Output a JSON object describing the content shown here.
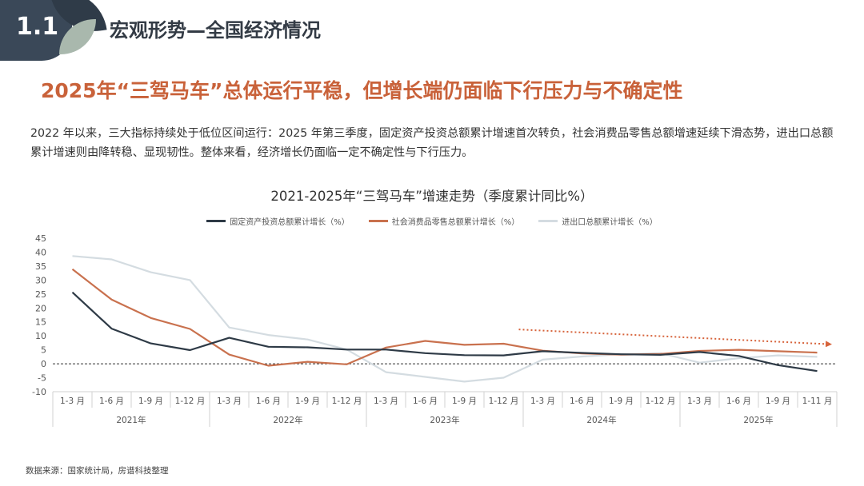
{
  "section": {
    "number": "1.1",
    "title": "宏观形势—全国经济情况"
  },
  "headline": "2025年“三驾马车”总体运行平稳，但增长端仍面临下行压力与不确定性",
  "body": "2022 年以来，三大指标持续处于低位区间运行：2025 年第三季度，固定资产投资总额累计增速首次转负，社会消费品零售总额增速延续下滑态势，进出口总额累计增速则由降转稳、显现韧性。整体来看，经济增长仍面临一定不确定性与下行压力。",
  "source": "数据来源：国家统计局，房谱科技整理",
  "colors": {
    "investment": "#2e3a46",
    "retail": "#c9714e",
    "trade": "#d4dce1",
    "trend_arrow": "#d7643c",
    "headline": "#c9623a"
  },
  "chart_data": {
    "type": "line",
    "title": "2021-2025年“三驾马车”增速走势（季度累计同比%）",
    "categories": [
      "1-3 月",
      "1-6 月",
      "1-9 月",
      "1-12 月",
      "1-3 月",
      "1-6 月",
      "1-9 月",
      "1-12 月",
      "1-3 月",
      "1-6 月",
      "1-9 月",
      "1-12 月",
      "1-3 月",
      "1-6 月",
      "1-9 月",
      "1-12 月",
      "1-3 月",
      "1-6 月",
      "1-9 月",
      "1-11 月"
    ],
    "groups": [
      {
        "label": "2021年",
        "count": 4
      },
      {
        "label": "2022年",
        "count": 4
      },
      {
        "label": "2023年",
        "count": 4
      },
      {
        "label": "2024年",
        "count": 4
      },
      {
        "label": "2025年",
        "count": 4
      }
    ],
    "series": [
      {
        "name": "固定资产投资总额累计增长（%）",
        "color_key": "investment",
        "values": [
          25.6,
          12.6,
          7.3,
          4.9,
          9.3,
          6.1,
          5.9,
          5.1,
          5.1,
          3.8,
          3.1,
          3.0,
          4.5,
          3.9,
          3.4,
          3.2,
          4.2,
          2.8,
          -0.5,
          -2.6
        ]
      },
      {
        "name": "社会消费品零售总额累计增长（%）",
        "color_key": "retail",
        "values": [
          33.9,
          23.0,
          16.4,
          12.5,
          3.3,
          -0.7,
          0.7,
          -0.2,
          5.8,
          8.2,
          6.8,
          7.2,
          4.7,
          3.7,
          3.3,
          3.5,
          4.6,
          5.0,
          4.5,
          4.0
        ]
      },
      {
        "name": "进出口总额累计增长（%）",
        "color_key": "trade",
        "values": [
          38.6,
          37.4,
          32.8,
          30.0,
          13.0,
          10.3,
          8.7,
          5.1,
          -3.0,
          -4.7,
          -6.4,
          -5.0,
          1.5,
          2.6,
          3.4,
          3.8,
          0.4,
          2.0,
          3.0,
          2.5
        ]
      }
    ],
    "y_ticks": [
      -10,
      -5,
      0,
      5,
      10,
      15,
      20,
      25,
      30,
      35,
      40,
      45
    ],
    "ylim": [
      -10,
      45
    ],
    "zero_line": "dashed",
    "grid": false,
    "legend_position": "top",
    "annotation": "trend-arrow-down"
  }
}
